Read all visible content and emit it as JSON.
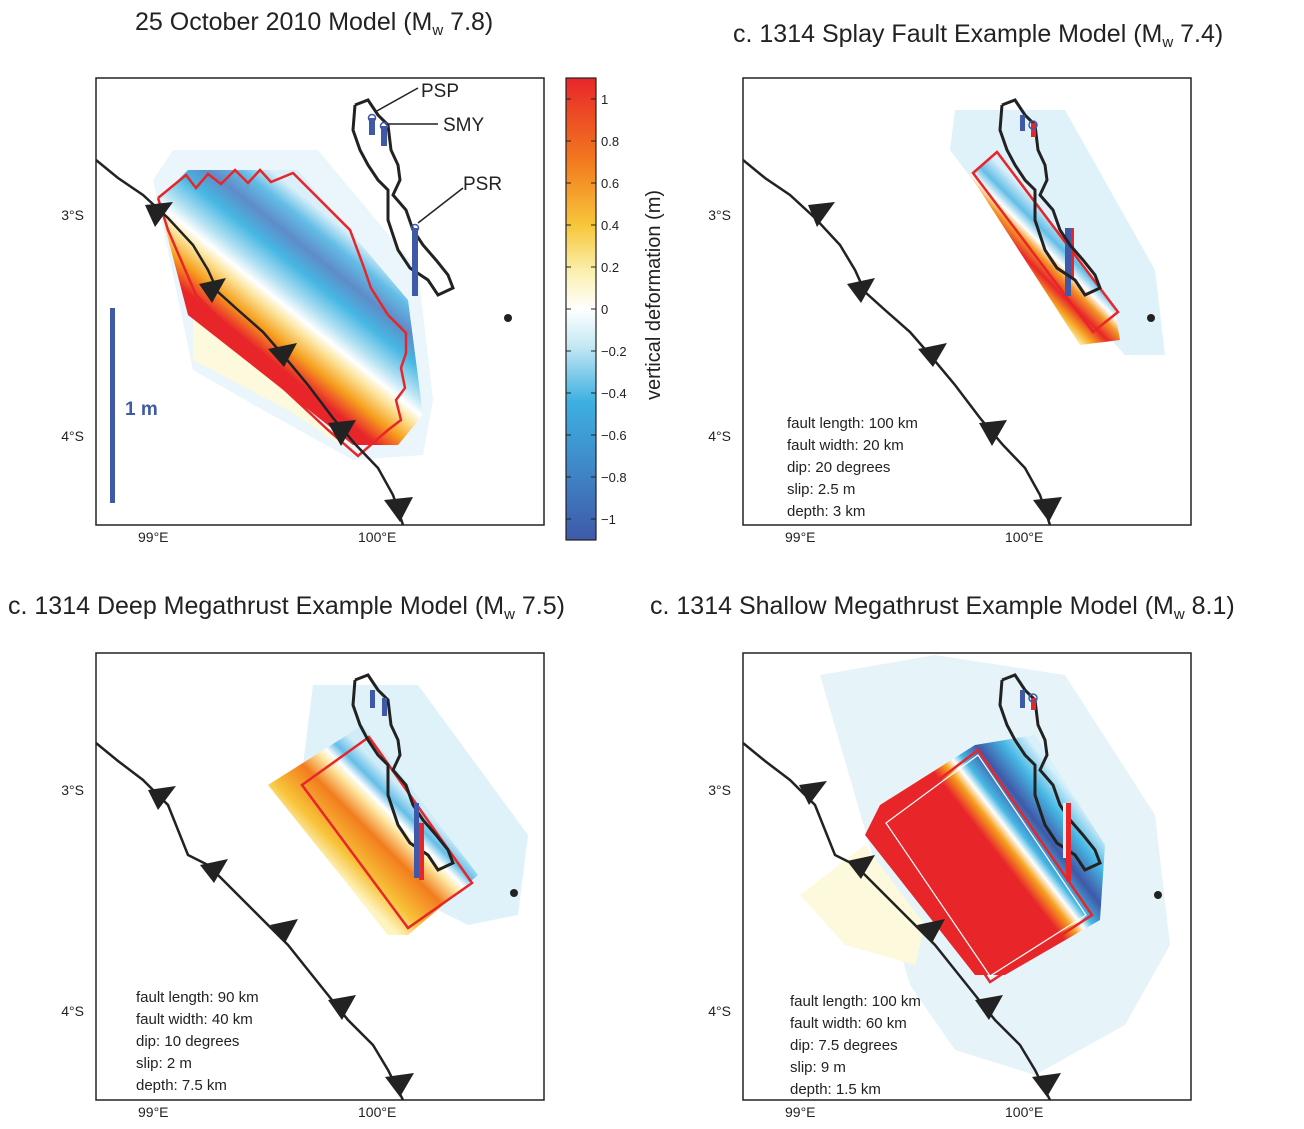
{
  "figure": {
    "panels": [
      {
        "title_pre": "25 October 2010 Model (M",
        "title_sub": "w",
        "title_post": " 7.8)",
        "lon_ticks": [
          "99°E",
          "100°E"
        ],
        "lat_ticks": [
          "3°S",
          "4°S"
        ],
        "stations": [
          "PSP",
          "SMY",
          "PSR"
        ],
        "scale_label": "1 m"
      },
      {
        "title_pre": "c. 1314 Splay Fault Example Model (M",
        "title_sub": "w",
        "title_post": " 7.4)",
        "lon_ticks": [
          "99°E",
          "100°E"
        ],
        "lat_ticks": [
          "3°S",
          "4°S"
        ],
        "params": [
          "fault length: 100 km",
          "fault width:  20 km",
          "dip:  20 degrees",
          "slip: 2.5 m",
          "depth: 3 km"
        ]
      },
      {
        "title_pre": "c. 1314 Deep Megathrust Example Model (M",
        "title_sub": "w",
        "title_post": " 7.5)",
        "lon_ticks": [
          "99°E",
          "100°E"
        ],
        "lat_ticks": [
          "3°S",
          "4°S"
        ],
        "params": [
          "fault length: 90 km",
          "fault width:  40 km",
          "dip:  10 degrees",
          "slip: 2 m",
          "depth: 7.5 km"
        ]
      },
      {
        "title_pre": "c. 1314 Shallow Megathrust Example Model (M",
        "title_sub": "w",
        "title_post": " 8.1)",
        "lon_ticks": [
          "99°E",
          "100°E"
        ],
        "lat_ticks": [
          "3°S",
          "4°S"
        ],
        "params": [
          "fault length: 100 km",
          "fault width:  60 km",
          "dip:  7.5 degrees",
          "slip: 9 m",
          "depth: 1.5 km"
        ]
      }
    ],
    "colorbar": {
      "label": "vertical deformation (m)",
      "ticks": [
        "1",
        "0.8",
        "0.6",
        "0.4",
        "0.2",
        "0",
        "−0.2",
        "−0.4",
        "−0.6",
        "−0.8",
        "−1"
      ],
      "range": [
        -1.1,
        1.1
      ]
    },
    "colors": {
      "uplift_max": "#e8262a",
      "subsidence_max": "#3f59a8",
      "fault_outline": "#e8262a",
      "station_bar": "#3f59a8"
    }
  }
}
